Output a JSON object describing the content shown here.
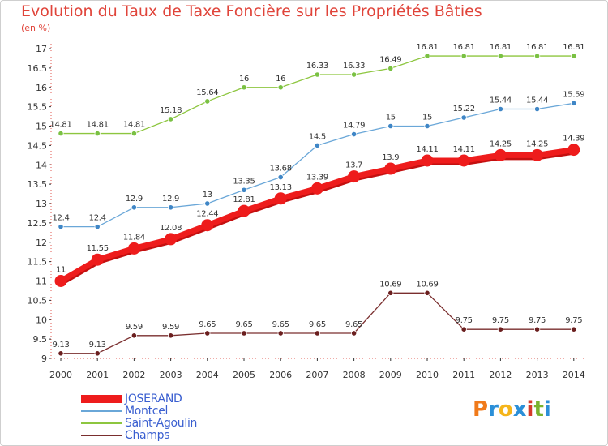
{
  "title": "Evolution du Taux de Taxe Foncière sur les Propriétés Bâties",
  "y_unit": "(en %)",
  "logo": {
    "letters": [
      "P",
      "r",
      "o",
      "x",
      "i",
      "t",
      "i"
    ],
    "colors": [
      "#f07a1a",
      "#2b8fd8",
      "#f5b51a",
      "#2b8fd8",
      "#d63a2a",
      "#7ab32e",
      "#2b8fd8"
    ]
  },
  "chart_data": {
    "type": "line",
    "x": [
      2000,
      2001,
      2002,
      2003,
      2004,
      2005,
      2006,
      2007,
      2008,
      2009,
      2010,
      2011,
      2012,
      2013,
      2014
    ],
    "ylim": [
      9,
      17
    ],
    "yticks": [
      9,
      9.5,
      10,
      10.5,
      11,
      11.5,
      12,
      12.5,
      13,
      13.5,
      14,
      14.5,
      15,
      15.5,
      16,
      16.5,
      17
    ],
    "grid": false,
    "legend_position": "bottom-left",
    "series": [
      {
        "name": "Saint-Agoulin",
        "color": "#8dc63f",
        "dot": "#7ac143",
        "thick": false,
        "values": [
          14.81,
          14.81,
          14.81,
          15.18,
          15.64,
          16,
          16,
          16.33,
          16.33,
          16.49,
          16.81,
          16.81,
          16.81,
          16.81,
          16.81
        ],
        "labels": [
          "14.81",
          "14.81",
          "14.81",
          "15.18",
          "15.64",
          "16",
          "16",
          "16.33",
          "16.33",
          "16.49",
          "16.81",
          "16.81",
          "16.81",
          "16.81",
          "16.81"
        ]
      },
      {
        "name": "Montcel",
        "color": "#6aa7d8",
        "dot": "#3f86c6",
        "thick": false,
        "values": [
          12.4,
          12.4,
          12.9,
          12.9,
          13,
          13.35,
          13.68,
          14.5,
          14.79,
          15,
          15,
          15.22,
          15.44,
          15.44,
          15.59
        ],
        "labels": [
          "12.4",
          "12.4",
          "12.9",
          "12.9",
          "13",
          "13.35",
          "13.68",
          "14.5",
          "14.79",
          "15",
          "15",
          "15.22",
          "15.44",
          "15.44",
          "15.59"
        ]
      },
      {
        "name": "JOSERAND",
        "color": "#ee1c1c",
        "dot": "#ee1c1c",
        "thick": true,
        "values": [
          11,
          11.55,
          11.84,
          12.08,
          12.44,
          12.81,
          13.13,
          13.39,
          13.7,
          13.9,
          14.11,
          14.11,
          14.25,
          14.25,
          14.39
        ],
        "labels": [
          "11",
          "11.55",
          "11.84",
          "12.08",
          "12.44",
          "12.81",
          "13.13",
          "13.39",
          "13.7",
          "13.9",
          "14.11",
          "14.11",
          "14.25",
          "14.25",
          "14.39"
        ]
      },
      {
        "name": "Champs",
        "color": "#7a2e2e",
        "dot": "#6b1f1f",
        "thick": false,
        "values": [
          9.13,
          9.13,
          9.59,
          9.59,
          9.65,
          9.65,
          9.65,
          9.65,
          9.65,
          10.69,
          10.69,
          9.75,
          9.75,
          9.75,
          9.75
        ],
        "labels": [
          "9.13",
          "9.13",
          "9.59",
          "9.59",
          "9.65",
          "9.65",
          "9.65",
          "9.65",
          "9.65",
          "10.69",
          "10.69",
          "9.75",
          "9.75",
          "9.75",
          "9.75"
        ]
      }
    ],
    "legend_order": [
      "JOSERAND",
      "Montcel",
      "Saint-Agoulin",
      "Champs"
    ]
  }
}
